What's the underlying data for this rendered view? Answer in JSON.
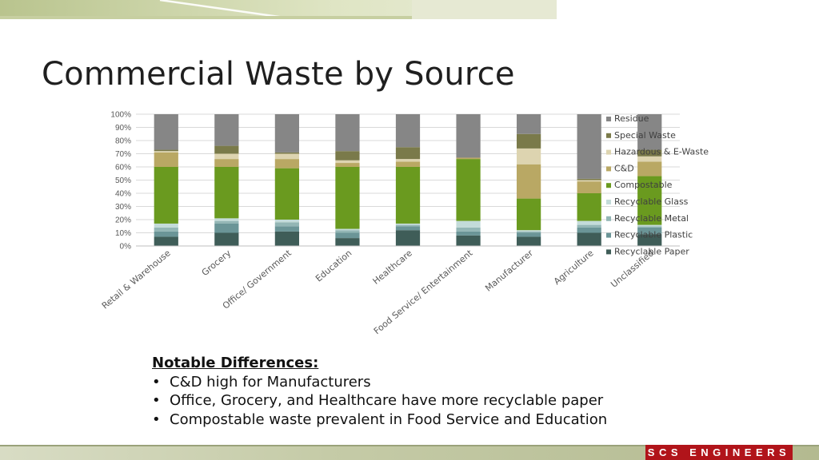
{
  "slide": {
    "title": "Commercial Waste by Source",
    "logo_text": "SCS ENGINEERS"
  },
  "notes": {
    "heading": "Notable Differences:",
    "bullets": [
      "C&D high for Manufacturers",
      "Office, Grocery, and Healthcare have more recyclable paper",
      "Compostable waste prevalent in Food Service and Education"
    ]
  },
  "chart_data": {
    "type": "bar",
    "stacked": true,
    "percent": true,
    "ylim": [
      0,
      100
    ],
    "yticks": [
      "0%",
      "10%",
      "20%",
      "30%",
      "40%",
      "50%",
      "60%",
      "70%",
      "80%",
      "90%",
      "100%"
    ],
    "grid": true,
    "legend_position": "right",
    "categories": [
      "Retail & Warehouse",
      "Grocery",
      "Office/ Government",
      "Education",
      "Healthcare",
      "Food Service/ Entertainment",
      "Manufacturer",
      "Agriculture",
      "Unclassified"
    ],
    "series": [
      {
        "name": "Recyclable Paper",
        "color": "#3f5d58",
        "values": [
          7,
          10,
          11,
          6,
          12,
          8,
          7,
          10,
          9
        ]
      },
      {
        "name": "Recyclable Plastic",
        "color": "#6b9597",
        "values": [
          4,
          7,
          4,
          4,
          3,
          3,
          3,
          4,
          5
        ]
      },
      {
        "name": "Recyclable Metal",
        "color": "#93b6b5",
        "values": [
          3,
          2,
          3,
          2,
          1,
          3,
          1,
          2,
          1
        ]
      },
      {
        "name": "Recyclable Glass",
        "color": "#c3dbd9",
        "values": [
          3,
          2,
          2,
          1,
          1,
          5,
          1,
          3,
          1
        ]
      },
      {
        "name": "Compostable",
        "color": "#6a9a1f",
        "values": [
          43,
          39,
          39,
          47,
          43,
          47,
          24,
          21,
          37
        ]
      },
      {
        "name": "C&D",
        "color": "#b9a864",
        "values": [
          11,
          6,
          7,
          3,
          4,
          1,
          26,
          9,
          11
        ]
      },
      {
        "name": "Hazardous & E-Waste",
        "color": "#ddd4b0",
        "values": [
          1,
          4,
          4,
          2,
          2,
          0,
          12,
          1,
          4
        ]
      },
      {
        "name": "Special Waste",
        "color": "#7a7a4a",
        "values": [
          1,
          6,
          1,
          7,
          9,
          0,
          11,
          1,
          5
        ]
      },
      {
        "name": "Residue",
        "color": "#868686",
        "values": [
          27,
          24,
          29,
          28,
          25,
          33,
          15,
          49,
          27
        ]
      }
    ]
  }
}
